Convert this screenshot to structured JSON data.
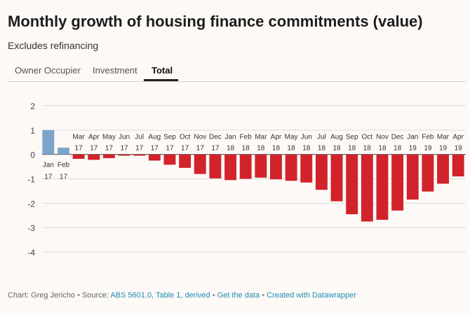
{
  "title": "Monthly growth of housing finance commitments (value)",
  "subtitle": "Excludes refinancing",
  "tabs": [
    {
      "label": "Owner Occupier",
      "active": false
    },
    {
      "label": "Investment",
      "active": false
    },
    {
      "label": "Total",
      "active": true
    }
  ],
  "colors": {
    "positive": "#7ba4cb",
    "negative": "#d2222b"
  },
  "footer": {
    "chart_prefix": "Chart: Greg Jericho",
    "source_prefix": "Source:",
    "source_link": "ABS 5601.0, Table 1, derived",
    "get_data": "Get the data",
    "created_with": "Created with Datawrapper"
  },
  "chart_data": {
    "type": "bar",
    "ylim": [
      -4,
      2
    ],
    "yticks": [
      2,
      1,
      0,
      -1,
      -2,
      -3,
      -4
    ],
    "grid": true,
    "categories": [
      {
        "month": "Jan",
        "year": "17"
      },
      {
        "month": "Feb",
        "year": "17"
      },
      {
        "month": "Mar",
        "year": "17"
      },
      {
        "month": "Apr",
        "year": "17"
      },
      {
        "month": "May",
        "year": "17"
      },
      {
        "month": "Jun",
        "year": "17"
      },
      {
        "month": "Jul",
        "year": "17"
      },
      {
        "month": "Aug",
        "year": "17"
      },
      {
        "month": "Sep",
        "year": "17"
      },
      {
        "month": "Oct",
        "year": "17"
      },
      {
        "month": "Nov",
        "year": "17"
      },
      {
        "month": "Dec",
        "year": "17"
      },
      {
        "month": "Jan",
        "year": "18"
      },
      {
        "month": "Feb",
        "year": "18"
      },
      {
        "month": "Mar",
        "year": "18"
      },
      {
        "month": "Apr",
        "year": "18"
      },
      {
        "month": "May",
        "year": "18"
      },
      {
        "month": "Jun",
        "year": "18"
      },
      {
        "month": "Jul",
        "year": "18"
      },
      {
        "month": "Aug",
        "year": "18"
      },
      {
        "month": "Sep",
        "year": "18"
      },
      {
        "month": "Oct",
        "year": "18"
      },
      {
        "month": "Nov",
        "year": "18"
      },
      {
        "month": "Dec",
        "year": "18"
      },
      {
        "month": "Jan",
        "year": "19"
      },
      {
        "month": "Feb",
        "year": "19"
      },
      {
        "month": "Mar",
        "year": "19"
      },
      {
        "month": "Apr",
        "year": "19"
      }
    ],
    "values": [
      1.0,
      0.28,
      -0.18,
      -0.22,
      -0.15,
      -0.05,
      -0.05,
      -0.25,
      -0.42,
      -0.55,
      -0.8,
      -0.98,
      -1.05,
      -1.0,
      -0.95,
      -1.02,
      -1.08,
      -1.15,
      -1.45,
      -1.92,
      -2.45,
      -2.75,
      -2.68,
      -2.3,
      -1.85,
      -1.52,
      -1.2,
      -0.9
    ]
  }
}
